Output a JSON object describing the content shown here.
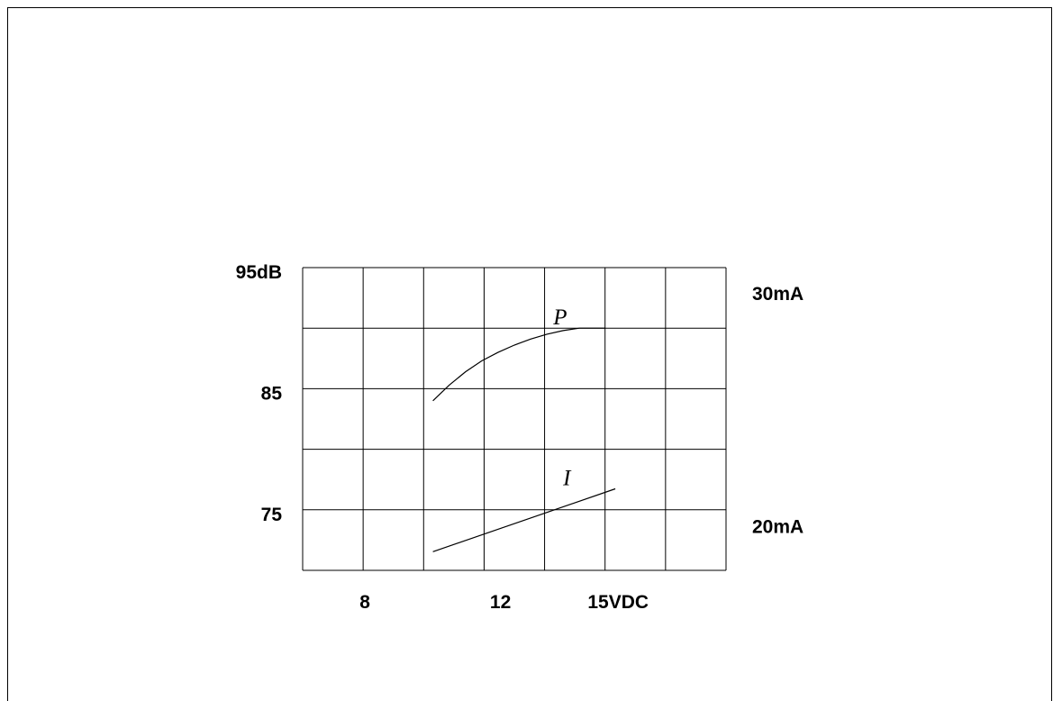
{
  "chart_data": {
    "type": "line",
    "title": "",
    "xlabel": "",
    "ylabel": "",
    "grid": true,
    "xlim": [
      6,
      19
    ],
    "ylim": [
      70,
      95
    ],
    "y2lim": [
      18,
      31
    ],
    "x_ticks": [
      {
        "value": 8,
        "label": "8"
      },
      {
        "value": 12,
        "label": "12"
      },
      {
        "value": 15,
        "label": "15VDC"
      }
    ],
    "y_ticks": [
      {
        "value": 95,
        "label": "95dB"
      },
      {
        "value": 85,
        "label": "85"
      },
      {
        "value": 75,
        "label": "75"
      }
    ],
    "y2_ticks": [
      {
        "value": 30,
        "label": "30mA"
      },
      {
        "value": 20,
        "label": "20mA"
      }
    ],
    "series": [
      {
        "name": "P",
        "axis": "left",
        "x": [
          10,
          10.5,
          11,
          11.5,
          12,
          12.5,
          13,
          13.5,
          14,
          14.5,
          15,
          15.3
        ],
        "y": [
          84,
          85.3,
          86.4,
          87.3,
          88,
          88.6,
          89.1,
          89.5,
          89.8,
          90,
          90,
          90
        ]
      },
      {
        "name": "I",
        "axis": "right",
        "x": [
          10,
          15.6
        ],
        "y": [
          18.8,
          21.5
        ]
      }
    ]
  }
}
